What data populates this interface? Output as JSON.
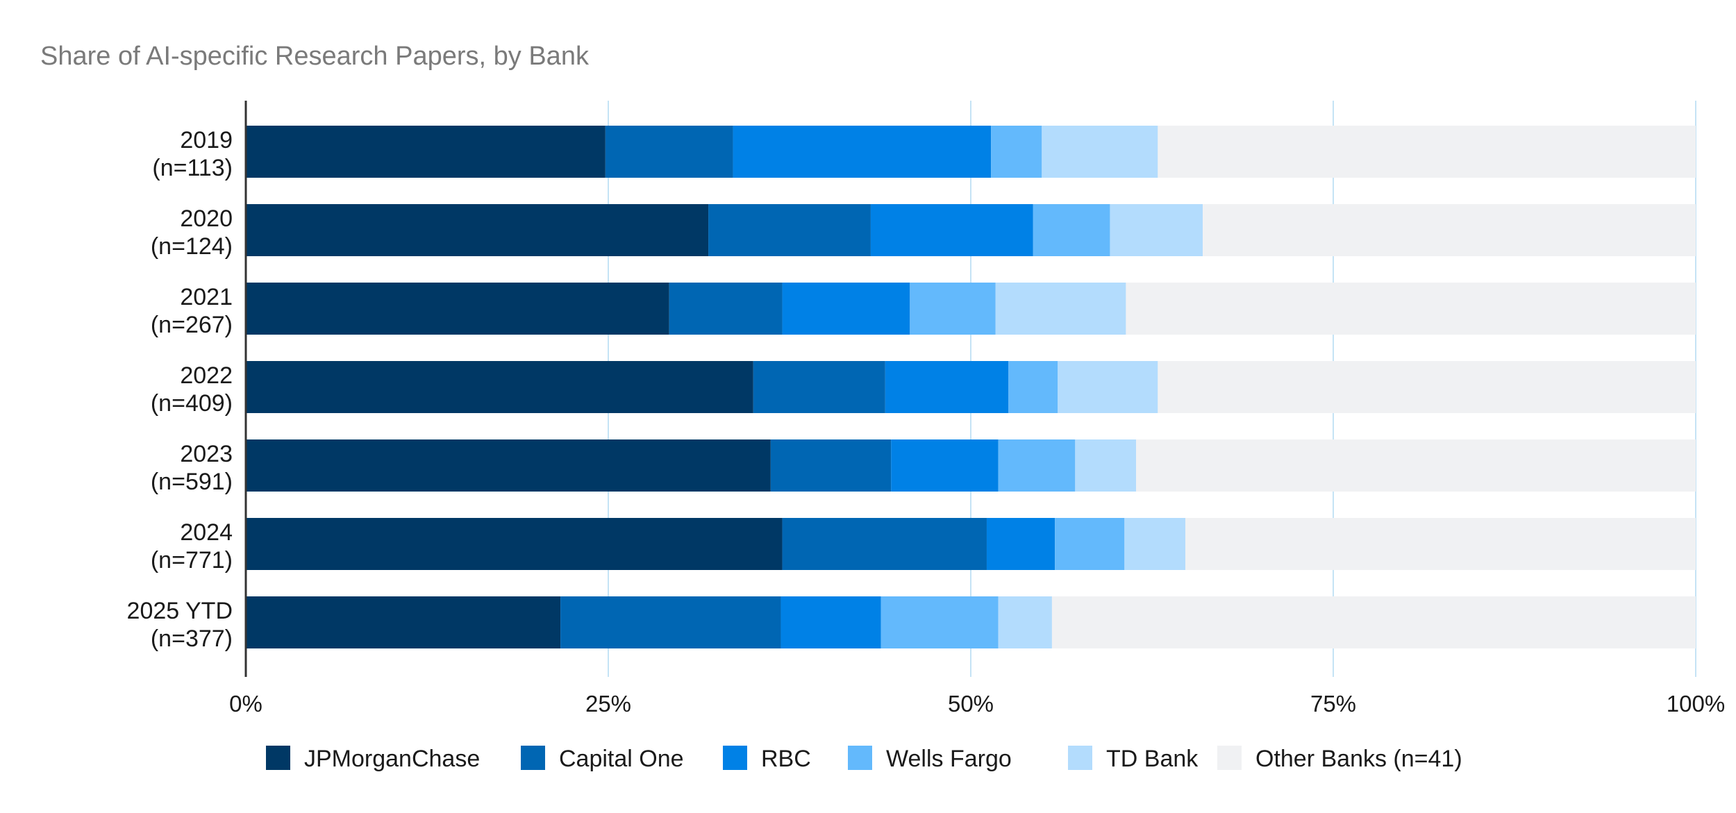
{
  "chart_data": {
    "type": "bar",
    "orientation": "horizontal",
    "stacked": true,
    "title": "Share of AI-specific Research Papers, by Bank",
    "categories": [
      "2019",
      "2020",
      "2021",
      "2022",
      "2023",
      "2024",
      "2025 YTD"
    ],
    "category_counts": [
      "(n=113)",
      "(n=124)",
      "(n=267)",
      "(n=409)",
      "(n=591)",
      "(n=771)",
      "(n=377)"
    ],
    "xlim": [
      0,
      100
    ],
    "x_ticks": [
      0,
      25,
      50,
      75,
      100
    ],
    "x_tick_labels": [
      "0%",
      "25%",
      "50%",
      "75%",
      "100%"
    ],
    "grid": true,
    "legend_position": "bottom",
    "series": [
      {
        "name": "JPMorganChase",
        "color": "#003865",
        "values": [
          24.8,
          31.9,
          29.2,
          35.0,
          36.2,
          37.0,
          21.7
        ]
      },
      {
        "name": "Capital One",
        "color": "#0066b3",
        "values": [
          8.8,
          11.2,
          7.8,
          9.1,
          8.3,
          14.1,
          15.2
        ]
      },
      {
        "name": "RBC",
        "color": "#0081e6",
        "values": [
          17.8,
          11.2,
          8.8,
          8.5,
          7.4,
          4.7,
          6.9
        ]
      },
      {
        "name": "Wells Fargo",
        "color": "#63b9fc",
        "values": [
          3.5,
          5.3,
          5.9,
          3.4,
          5.3,
          4.8,
          8.1
        ]
      },
      {
        "name": "TD Bank",
        "color": "#b3dcfd",
        "values": [
          8.0,
          6.4,
          9.0,
          6.9,
          4.2,
          4.2,
          3.7
        ]
      },
      {
        "name": "Other Banks (n=41)",
        "color": "#f0f1f3",
        "values": [
          37.1,
          34.0,
          39.3,
          37.1,
          38.6,
          35.2,
          44.4
        ]
      }
    ]
  }
}
